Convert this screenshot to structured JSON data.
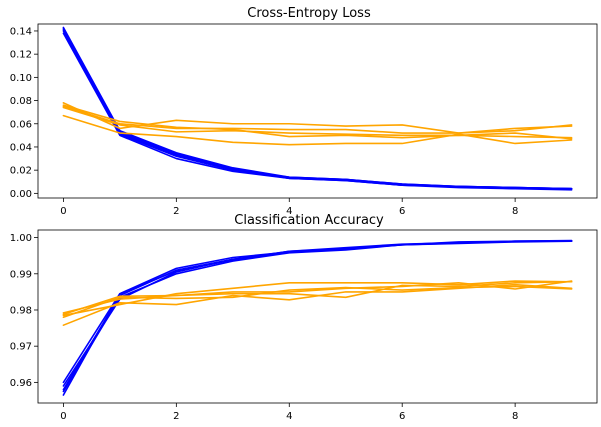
{
  "chart_data": [
    {
      "type": "line",
      "title": "Cross-Entropy Loss",
      "xlabel": "",
      "ylabel": "",
      "xlim": [
        -0.45,
        9.45
      ],
      "ylim": [
        -0.004,
        0.146
      ],
      "xticks": [
        0,
        2,
        4,
        6,
        8
      ],
      "xtick_labels": [
        "0",
        "2",
        "4",
        "6",
        "8"
      ],
      "yticks": [
        0.0,
        0.02,
        0.04,
        0.06,
        0.08,
        0.1,
        0.12,
        0.14
      ],
      "ytick_labels": [
        "0.00",
        "0.02",
        "0.04",
        "0.06",
        "0.08",
        "0.10",
        "0.12",
        "0.14"
      ],
      "grid": false,
      "x": [
        0,
        1,
        2,
        3,
        4,
        5,
        6,
        7,
        8,
        9
      ],
      "series": [
        {
          "color": "#0000ff",
          "values": [
            0.143,
            0.054,
            0.035,
            0.022,
            0.014,
            0.012,
            0.008,
            0.006,
            0.005,
            0.004
          ]
        },
        {
          "color": "#0000ff",
          "values": [
            0.141,
            0.052,
            0.033,
            0.021,
            0.013,
            0.011,
            0.007,
            0.006,
            0.005,
            0.004
          ]
        },
        {
          "color": "#0000ff",
          "values": [
            0.14,
            0.051,
            0.032,
            0.02,
            0.014,
            0.012,
            0.007,
            0.005,
            0.004,
            0.004
          ]
        },
        {
          "color": "#0000ff",
          "values": [
            0.138,
            0.05,
            0.03,
            0.019,
            0.013,
            0.011,
            0.007,
            0.006,
            0.004,
            0.003
          ]
        },
        {
          "color": "#0000ff",
          "values": [
            0.142,
            0.053,
            0.034,
            0.021,
            0.013,
            0.012,
            0.008,
            0.006,
            0.005,
            0.004
          ]
        },
        {
          "color": "#ffa500",
          "values": [
            0.078,
            0.056,
            0.063,
            0.06,
            0.06,
            0.058,
            0.059,
            0.052,
            0.056,
            0.058
          ]
        },
        {
          "color": "#ffa500",
          "values": [
            0.067,
            0.052,
            0.049,
            0.044,
            0.042,
            0.043,
            0.043,
            0.051,
            0.043,
            0.046
          ]
        },
        {
          "color": "#ffa500",
          "values": [
            0.075,
            0.06,
            0.056,
            0.056,
            0.055,
            0.055,
            0.052,
            0.052,
            0.054,
            0.059
          ]
        },
        {
          "color": "#ffa500",
          "values": [
            0.074,
            0.059,
            0.053,
            0.054,
            0.052,
            0.051,
            0.05,
            0.05,
            0.052,
            0.047
          ]
        },
        {
          "color": "#ffa500",
          "values": [
            0.076,
            0.062,
            0.057,
            0.055,
            0.049,
            0.05,
            0.048,
            0.05,
            0.049,
            0.048
          ]
        }
      ]
    },
    {
      "type": "line",
      "title": "Classification Accuracy",
      "xlabel": "",
      "ylabel": "",
      "xlim": [
        -0.45,
        9.45
      ],
      "ylim": [
        0.9543,
        1.0021
      ],
      "xticks": [
        0,
        2,
        4,
        6,
        8
      ],
      "xtick_labels": [
        "0",
        "2",
        "4",
        "6",
        "8"
      ],
      "yticks": [
        0.96,
        0.97,
        0.98,
        0.99,
        1.0
      ],
      "ytick_labels": [
        "0.96",
        "0.97",
        "0.98",
        "0.99",
        "1.00"
      ],
      "grid": false,
      "x": [
        0,
        1,
        2,
        3,
        4,
        5,
        6,
        7,
        8,
        9
      ],
      "series": [
        {
          "color": "#0000ff",
          "values": [
            0.9565,
            0.9845,
            0.9915,
            0.9945,
            0.996,
            0.9968,
            0.998,
            0.9988,
            0.999,
            0.9991
          ]
        },
        {
          "color": "#0000ff",
          "values": [
            0.958,
            0.984,
            0.991,
            0.994,
            0.996,
            0.997,
            0.998,
            0.9985,
            0.999,
            0.999
          ]
        },
        {
          "color": "#0000ff",
          "values": [
            0.959,
            0.983,
            0.9905,
            0.994,
            0.9962,
            0.9972,
            0.9982,
            0.9986,
            0.999,
            0.9992
          ]
        },
        {
          "color": "#0000ff",
          "values": [
            0.9575,
            0.9835,
            0.99,
            0.9935,
            0.9958,
            0.9966,
            0.998,
            0.9984,
            0.9988,
            0.999
          ]
        },
        {
          "color": "#0000ff",
          "values": [
            0.96,
            0.9845,
            0.9908,
            0.9938,
            0.9962,
            0.9969,
            0.9981,
            0.9985,
            0.9989,
            0.9991
          ]
        },
        {
          "color": "#ffa500",
          "values": [
            0.9785,
            0.9815,
            0.9845,
            0.986,
            0.9875,
            0.9875,
            0.9875,
            0.987,
            0.988,
            0.9878
          ]
        },
        {
          "color": "#ffa500",
          "values": [
            0.9758,
            0.982,
            0.9815,
            0.984,
            0.9828,
            0.985,
            0.985,
            0.986,
            0.987,
            0.986
          ]
        },
        {
          "color": "#ffa500",
          "values": [
            0.9792,
            0.983,
            0.984,
            0.985,
            0.985,
            0.986,
            0.9865,
            0.9875,
            0.9858,
            0.988
          ]
        },
        {
          "color": "#ffa500",
          "values": [
            0.978,
            0.9835,
            0.9832,
            0.9835,
            0.9855,
            0.9862,
            0.9855,
            0.9862,
            0.9865,
            0.9858
          ]
        },
        {
          "color": "#ffa500",
          "values": [
            0.9788,
            0.9838,
            0.984,
            0.9845,
            0.9845,
            0.9835,
            0.9868,
            0.9865,
            0.9875,
            0.9878
          ]
        }
      ]
    }
  ]
}
